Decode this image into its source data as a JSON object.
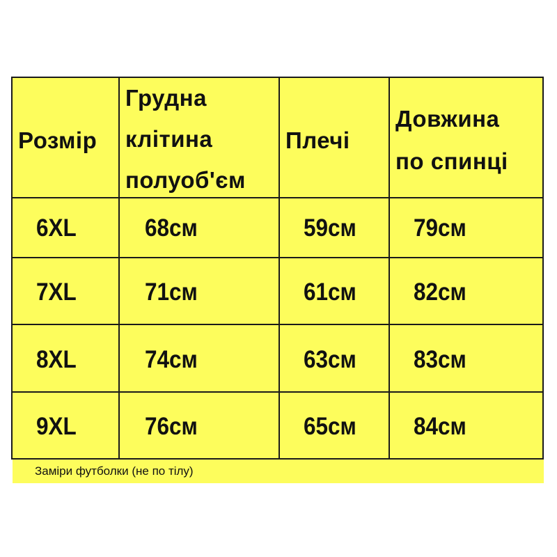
{
  "headers": [
    "Розмір",
    "Грудна клітина полуоб'єм",
    "Плечі",
    "Довжина по спинці"
  ],
  "header_lines": {
    "size": [
      "Розмір"
    ],
    "chest": [
      "Грудна",
      "клітина",
      "полуоб'єм"
    ],
    "shoulders": [
      "Плечі"
    ],
    "length": [
      "Довжина",
      "по спинці"
    ]
  },
  "rows": [
    [
      "6XL",
      "68см",
      "59см",
      "79см"
    ],
    [
      "7XL",
      "71см",
      "61см",
      "82см"
    ],
    [
      "8XL",
      "74см",
      "63см",
      "83см"
    ],
    [
      "9XL",
      "76см",
      "65см",
      "84см"
    ]
  ],
  "footnote": "Заміри футболки (не по тілу)",
  "colors": {
    "background": "#fdfd5c",
    "border": "#1a1a1a"
  }
}
